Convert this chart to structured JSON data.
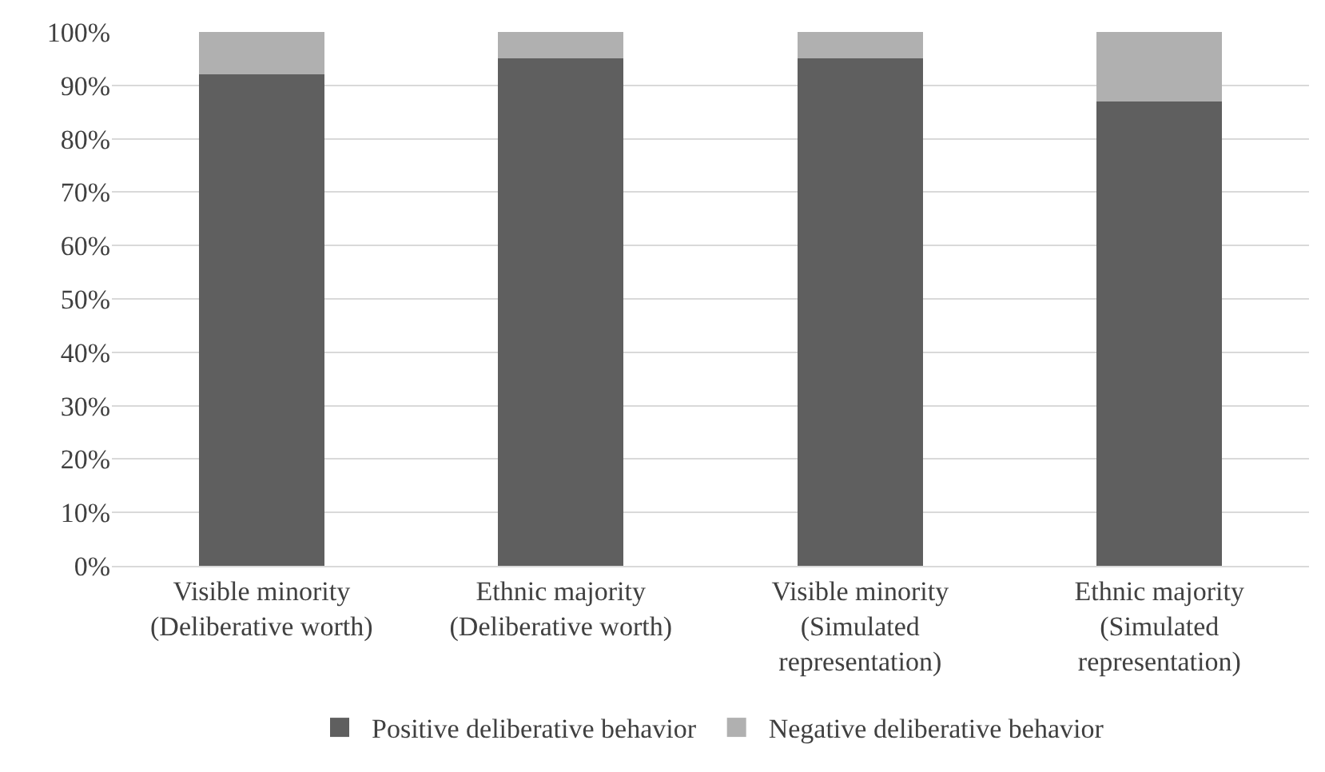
{
  "chart_data": {
    "type": "bar",
    "stacked": true,
    "categories": [
      "Visible minority\n(Deliberative worth)",
      "Ethnic majority\n(Deliberative worth)",
      "Visible minority\n(Simulated\nrepresentation)",
      "Ethnic majority\n(Simulated\nrepresentation)"
    ],
    "series": [
      {
        "name": "Positive deliberative behavior",
        "color": "#5f5f5f",
        "values": [
          92,
          95,
          95,
          87
        ]
      },
      {
        "name": "Negative deliberative behavior",
        "color": "#b0b0b0",
        "values": [
          8,
          5,
          5,
          13
        ]
      }
    ],
    "ylim": [
      0,
      100
    ],
    "yticks": [
      {
        "value": 0,
        "label": "0%"
      },
      {
        "value": 10,
        "label": "10%"
      },
      {
        "value": 20,
        "label": "20%"
      },
      {
        "value": 30,
        "label": "30%"
      },
      {
        "value": 40,
        "label": "40%"
      },
      {
        "value": 50,
        "label": "50%"
      },
      {
        "value": 60,
        "label": "60%"
      },
      {
        "value": 70,
        "label": "70%"
      },
      {
        "value": 80,
        "label": "80%"
      },
      {
        "value": 90,
        "label": "90%"
      },
      {
        "value": 100,
        "label": "100%"
      }
    ],
    "grid": "y",
    "legend": "bottom"
  }
}
